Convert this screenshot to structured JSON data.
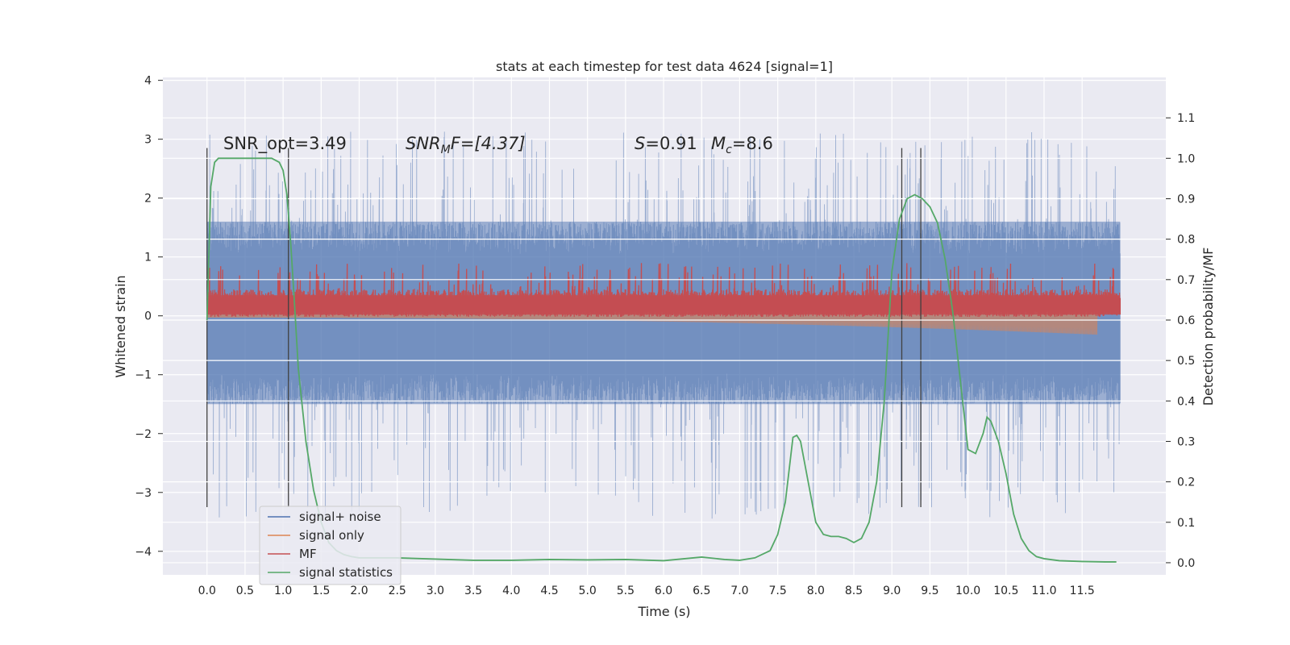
{
  "chart_data": {
    "type": "line",
    "title": "stats at each timestep for test data 4624 [signal=1]",
    "xlabel": "Time (s)",
    "ylabel": "Whitened strain",
    "y2label": "Detection probability/MF",
    "xlim": [
      -0.58,
      12.6
    ],
    "ylim": [
      -4.4,
      4.05
    ],
    "y2lim": [
      -0.03,
      1.2
    ],
    "xticks": [
      0.0,
      0.5,
      1.0,
      1.5,
      2.0,
      2.5,
      3.0,
      3.5,
      4.0,
      4.5,
      5.0,
      5.5,
      6.0,
      6.5,
      7.0,
      7.5,
      8.0,
      8.5,
      9.0,
      9.5,
      10.0,
      10.5,
      11.0,
      11.5
    ],
    "xtick_labels": [
      "0.0",
      "0.5",
      "1.0",
      "1.5",
      "2.0",
      "2.5",
      "3.0",
      "3.5",
      "4.0",
      "4.5",
      "5.0",
      "5.5",
      "6.0",
      "6.5",
      "7.0",
      "7.5",
      "8.0",
      "8.5",
      "9.0",
      "9.5",
      "10.0",
      "10.5",
      "11.0",
      "11.5"
    ],
    "yticks": [
      -4,
      -3,
      -2,
      -1,
      0,
      1,
      2,
      3,
      4
    ],
    "ytick_labels": [
      "−4",
      "−3",
      "−2",
      "−1",
      "0",
      "1",
      "2",
      "3",
      "4"
    ],
    "y2ticks": [
      0.0,
      0.1,
      0.2,
      0.3,
      0.4,
      0.5,
      0.6,
      0.7,
      0.8,
      0.9,
      1.0,
      1.1
    ],
    "y2tick_labels": [
      "0.0",
      "0.1",
      "0.2",
      "0.3",
      "0.4",
      "0.5",
      "0.6",
      "0.7",
      "0.8",
      "0.9",
      "1.0",
      "1.1"
    ],
    "grid": true,
    "legend_position": "bottom-left",
    "annotations": {
      "snr_opt": "SNR_opt=3.49",
      "snr_mf_main": "SNR",
      "snr_mf_sub": "M",
      "snr_mf_rest": "F=[4.37]",
      "s_var": "S",
      "s_val": "=0.91",
      "mc_var": "M",
      "mc_sub": "c",
      "mc_val": "=8.6"
    },
    "vlines_x": [
      0.0,
      1.07,
      9.13,
      9.38
    ],
    "vline_range": [
      -3.25,
      2.85
    ],
    "series": [
      {
        "name": "signal+ noise",
        "color": "#4c72b0",
        "kind": "noise",
        "x_range": [
          0.0,
          12.0
        ],
        "envelope_typical": [
          -1.5,
          1.6
        ],
        "envelope_extreme": [
          -4.1,
          3.65
        ]
      },
      {
        "name": "signal only",
        "color": "#dd8452",
        "kind": "chirp",
        "x_range": [
          0.0,
          11.7
        ],
        "amplitude_start": 0.03,
        "amplitude_end": 0.32
      },
      {
        "name": "MF",
        "color": "#c44e52",
        "kind": "band",
        "x_range": [
          0.0,
          12.0
        ],
        "typical": [
          0.0,
          0.4
        ],
        "peak": 1.0
      },
      {
        "name": "signal statistics",
        "color": "#55a868",
        "axis": "right",
        "x": [
          0.0,
          0.05,
          0.1,
          0.15,
          0.2,
          0.3,
          0.5,
          0.7,
          0.85,
          0.95,
          1.0,
          1.05,
          1.1,
          1.15,
          1.2,
          1.3,
          1.4,
          1.5,
          1.6,
          1.7,
          1.8,
          1.9,
          2.0,
          2.2,
          2.5,
          3.0,
          3.5,
          4.0,
          4.5,
          5.0,
          5.5,
          6.0,
          6.5,
          6.8,
          7.0,
          7.2,
          7.4,
          7.5,
          7.6,
          7.7,
          7.75,
          7.8,
          7.9,
          8.0,
          8.1,
          8.2,
          8.3,
          8.4,
          8.5,
          8.6,
          8.7,
          8.8,
          8.9,
          9.0,
          9.1,
          9.2,
          9.3,
          9.4,
          9.5,
          9.6,
          9.7,
          9.8,
          9.9,
          10.0,
          10.1,
          10.2,
          10.25,
          10.3,
          10.4,
          10.5,
          10.6,
          10.7,
          10.8,
          10.9,
          11.0,
          11.2,
          11.5,
          11.8,
          11.95
        ],
        "y": [
          0.6,
          0.93,
          0.99,
          1.0,
          1.0,
          1.0,
          1.0,
          1.0,
          1.0,
          0.99,
          0.97,
          0.91,
          0.79,
          0.64,
          0.48,
          0.3,
          0.18,
          0.1,
          0.05,
          0.03,
          0.02,
          0.015,
          0.012,
          0.012,
          0.012,
          0.009,
          0.006,
          0.006,
          0.008,
          0.007,
          0.008,
          0.005,
          0.014,
          0.008,
          0.006,
          0.012,
          0.03,
          0.07,
          0.15,
          0.31,
          0.315,
          0.3,
          0.2,
          0.1,
          0.07,
          0.065,
          0.065,
          0.06,
          0.05,
          0.06,
          0.1,
          0.2,
          0.4,
          0.72,
          0.85,
          0.9,
          0.91,
          0.9,
          0.88,
          0.84,
          0.75,
          0.62,
          0.45,
          0.28,
          0.27,
          0.32,
          0.36,
          0.35,
          0.3,
          0.22,
          0.12,
          0.06,
          0.03,
          0.015,
          0.01,
          0.005,
          0.003,
          0.002,
          0.002
        ]
      }
    ]
  }
}
